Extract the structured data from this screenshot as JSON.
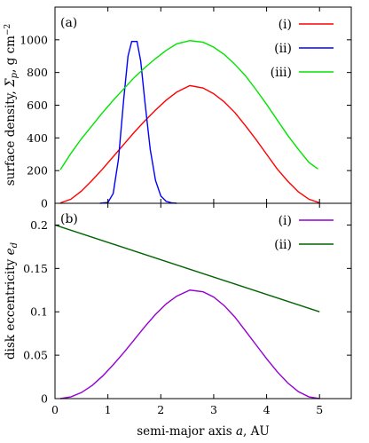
{
  "chart_data": [
    {
      "type": "line",
      "panel_label": "(a)",
      "ylabel": "surface density, Σ_p, g cm^-2",
      "xlim": [
        0,
        5.6
      ],
      "ylim": [
        0,
        1200
      ],
      "xticks": [
        0,
        1,
        2,
        3,
        4,
        5
      ],
      "yticks": [
        0,
        200,
        400,
        600,
        800,
        1000
      ],
      "show_x_tick_labels": false,
      "legend_position": "top-right",
      "series": [
        {
          "name": "(i)",
          "color": "#ff0000",
          "x": [
            0.1,
            0.3,
            0.5,
            0.7,
            0.9,
            1.1,
            1.3,
            1.5,
            1.7,
            1.9,
            2.1,
            2.3,
            2.55,
            2.8,
            3.0,
            3.2,
            3.4,
            3.6,
            3.8,
            4.0,
            4.2,
            4.4,
            4.6,
            4.8,
            5.0
          ],
          "y": [
            2,
            25,
            75,
            140,
            210,
            285,
            360,
            435,
            505,
            570,
            630,
            680,
            720,
            705,
            670,
            620,
            555,
            475,
            390,
            300,
            210,
            135,
            70,
            25,
            3
          ]
        },
        {
          "name": "(ii)",
          "color": "#0000ff",
          "x": [
            0.85,
            1.0,
            1.1,
            1.2,
            1.3,
            1.38,
            1.45,
            1.55,
            1.62,
            1.7,
            1.8,
            1.9,
            2.0,
            2.1,
            2.2,
            2.3
          ],
          "y": [
            0,
            5,
            60,
            270,
            640,
            900,
            990,
            990,
            870,
            620,
            330,
            140,
            45,
            12,
            3,
            0
          ]
        },
        {
          "name": "(iii)",
          "color": "#00e400",
          "x": [
            0.1,
            0.3,
            0.5,
            0.7,
            0.9,
            1.1,
            1.3,
            1.5,
            1.7,
            1.9,
            2.1,
            2.3,
            2.55,
            2.8,
            3.0,
            3.2,
            3.4,
            3.6,
            3.8,
            4.0,
            4.2,
            4.4,
            4.6,
            4.8,
            4.97
          ],
          "y": [
            205,
            305,
            395,
            475,
            555,
            630,
            700,
            770,
            830,
            885,
            935,
            975,
            995,
            985,
            955,
            910,
            850,
            780,
            695,
            605,
            510,
            415,
            330,
            250,
            210
          ]
        }
      ]
    },
    {
      "type": "line",
      "panel_label": "(b)",
      "xlabel": "semi-major axis a, AU",
      "ylabel": "disk eccentricity e_d",
      "xlim": [
        0,
        5.6
      ],
      "ylim": [
        0,
        0.225
      ],
      "xticks": [
        0,
        1,
        2,
        3,
        4,
        5
      ],
      "yticks": [
        0,
        0.05,
        0.1,
        0.15,
        0.2
      ],
      "legend_position": "top-right",
      "series": [
        {
          "name": "(i)",
          "color": "#9400d3",
          "x": [
            0.1,
            0.3,
            0.5,
            0.7,
            0.9,
            1.1,
            1.3,
            1.5,
            1.7,
            1.9,
            2.1,
            2.3,
            2.55,
            2.8,
            3.0,
            3.2,
            3.4,
            3.6,
            3.8,
            4.0,
            4.2,
            4.4,
            4.6,
            4.8,
            5.0
          ],
          "y": [
            0,
            0.002,
            0.007,
            0.015,
            0.026,
            0.039,
            0.053,
            0.068,
            0.083,
            0.097,
            0.109,
            0.118,
            0.125,
            0.123,
            0.117,
            0.107,
            0.094,
            0.078,
            0.062,
            0.046,
            0.031,
            0.018,
            0.008,
            0.002,
            0
          ]
        },
        {
          "name": "(ii)",
          "color": "#006400",
          "x": [
            0,
            5
          ],
          "y": [
            0.2,
            0.1
          ]
        }
      ]
    }
  ]
}
